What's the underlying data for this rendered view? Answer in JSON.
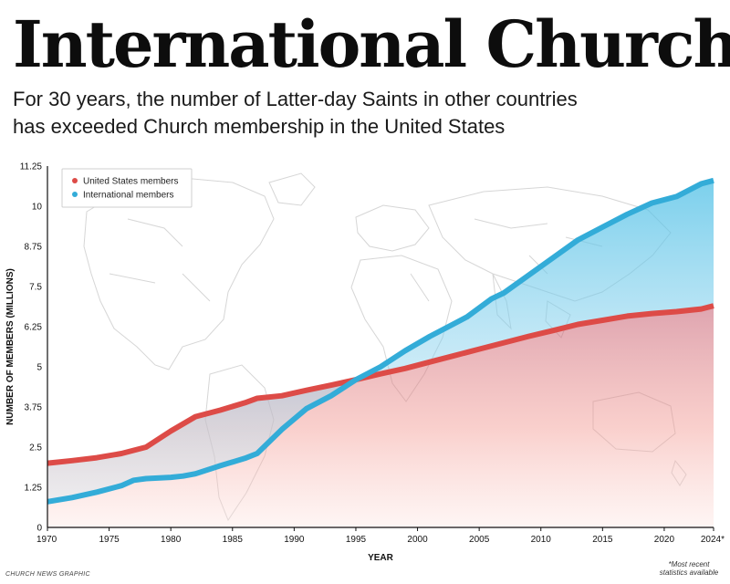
{
  "title": "International Church",
  "subtitle_lines": [
    "For 30 years, the number of Latter-day Saints in other countries",
    "has exceeded Church membership in the United States"
  ],
  "credit": "CHURCH NEWS GRAPHIC",
  "footnote_lines": [
    "*Most recent",
    "statistics available"
  ],
  "chart_data": {
    "type": "line",
    "xlabel": "YEAR",
    "ylabel": "NUMBER OF MEMBERS (MILLIONS)",
    "xlim": [
      1970,
      2024
    ],
    "ylim": [
      0,
      11.25
    ],
    "x_ticks": [
      1970,
      1975,
      1980,
      1985,
      1990,
      1995,
      2000,
      2005,
      2010,
      2015,
      2020,
      2024
    ],
    "x_tick_labels": [
      "1970",
      "1975",
      "1980",
      "1985",
      "1990",
      "1995",
      "2000",
      "2005",
      "2010",
      "2015",
      "2020",
      "2024*"
    ],
    "y_ticks": [
      0,
      1.25,
      2.5,
      3.75,
      5,
      6.25,
      7.5,
      8.75,
      10,
      11.25
    ],
    "y_tick_labels": [
      "0",
      "1.25",
      "2.5",
      "3.75",
      "5",
      "6.25",
      "7.5",
      "8.75",
      "10",
      "11.25"
    ],
    "grid": false,
    "legend_position": "top-left",
    "background": "faint world map outline",
    "series": [
      {
        "name": "United States members",
        "color": "#dd4b47",
        "fill_top": "#f08a84",
        "x": [
          1970,
          1972,
          1974,
          1976,
          1978,
          1980,
          1982,
          1984,
          1986,
          1987,
          1989,
          1991,
          1993,
          1995,
          1997,
          1999,
          2001,
          2003,
          2005,
          2007,
          2009,
          2011,
          2013,
          2015,
          2017,
          2019,
          2021,
          2023,
          2024
        ],
        "values": [
          2.0,
          2.08,
          2.17,
          2.3,
          2.5,
          3.0,
          3.45,
          3.65,
          3.88,
          4.02,
          4.1,
          4.27,
          4.43,
          4.6,
          4.78,
          4.95,
          5.15,
          5.35,
          5.55,
          5.75,
          5.95,
          6.13,
          6.32,
          6.45,
          6.58,
          6.66,
          6.72,
          6.8,
          6.9
        ]
      },
      {
        "name": "International members",
        "color": "#33acd8",
        "fill_top": "#6ccbed",
        "x": [
          1970,
          1972,
          1974,
          1976,
          1977,
          1978,
          1980,
          1981,
          1982,
          1984,
          1986,
          1987,
          1989,
          1991,
          1993,
          1995,
          1997,
          1999,
          2001,
          2003,
          2004,
          2006,
          2007,
          2009,
          2011,
          2013,
          2015,
          2017,
          2019,
          2021,
          2023,
          2024
        ],
        "values": [
          0.8,
          0.93,
          1.1,
          1.3,
          1.47,
          1.52,
          1.56,
          1.6,
          1.67,
          1.92,
          2.15,
          2.3,
          3.05,
          3.7,
          4.1,
          4.6,
          5.0,
          5.5,
          5.95,
          6.35,
          6.55,
          7.12,
          7.3,
          7.85,
          8.4,
          8.95,
          9.35,
          9.75,
          10.1,
          10.3,
          10.7,
          10.8
        ]
      }
    ]
  }
}
